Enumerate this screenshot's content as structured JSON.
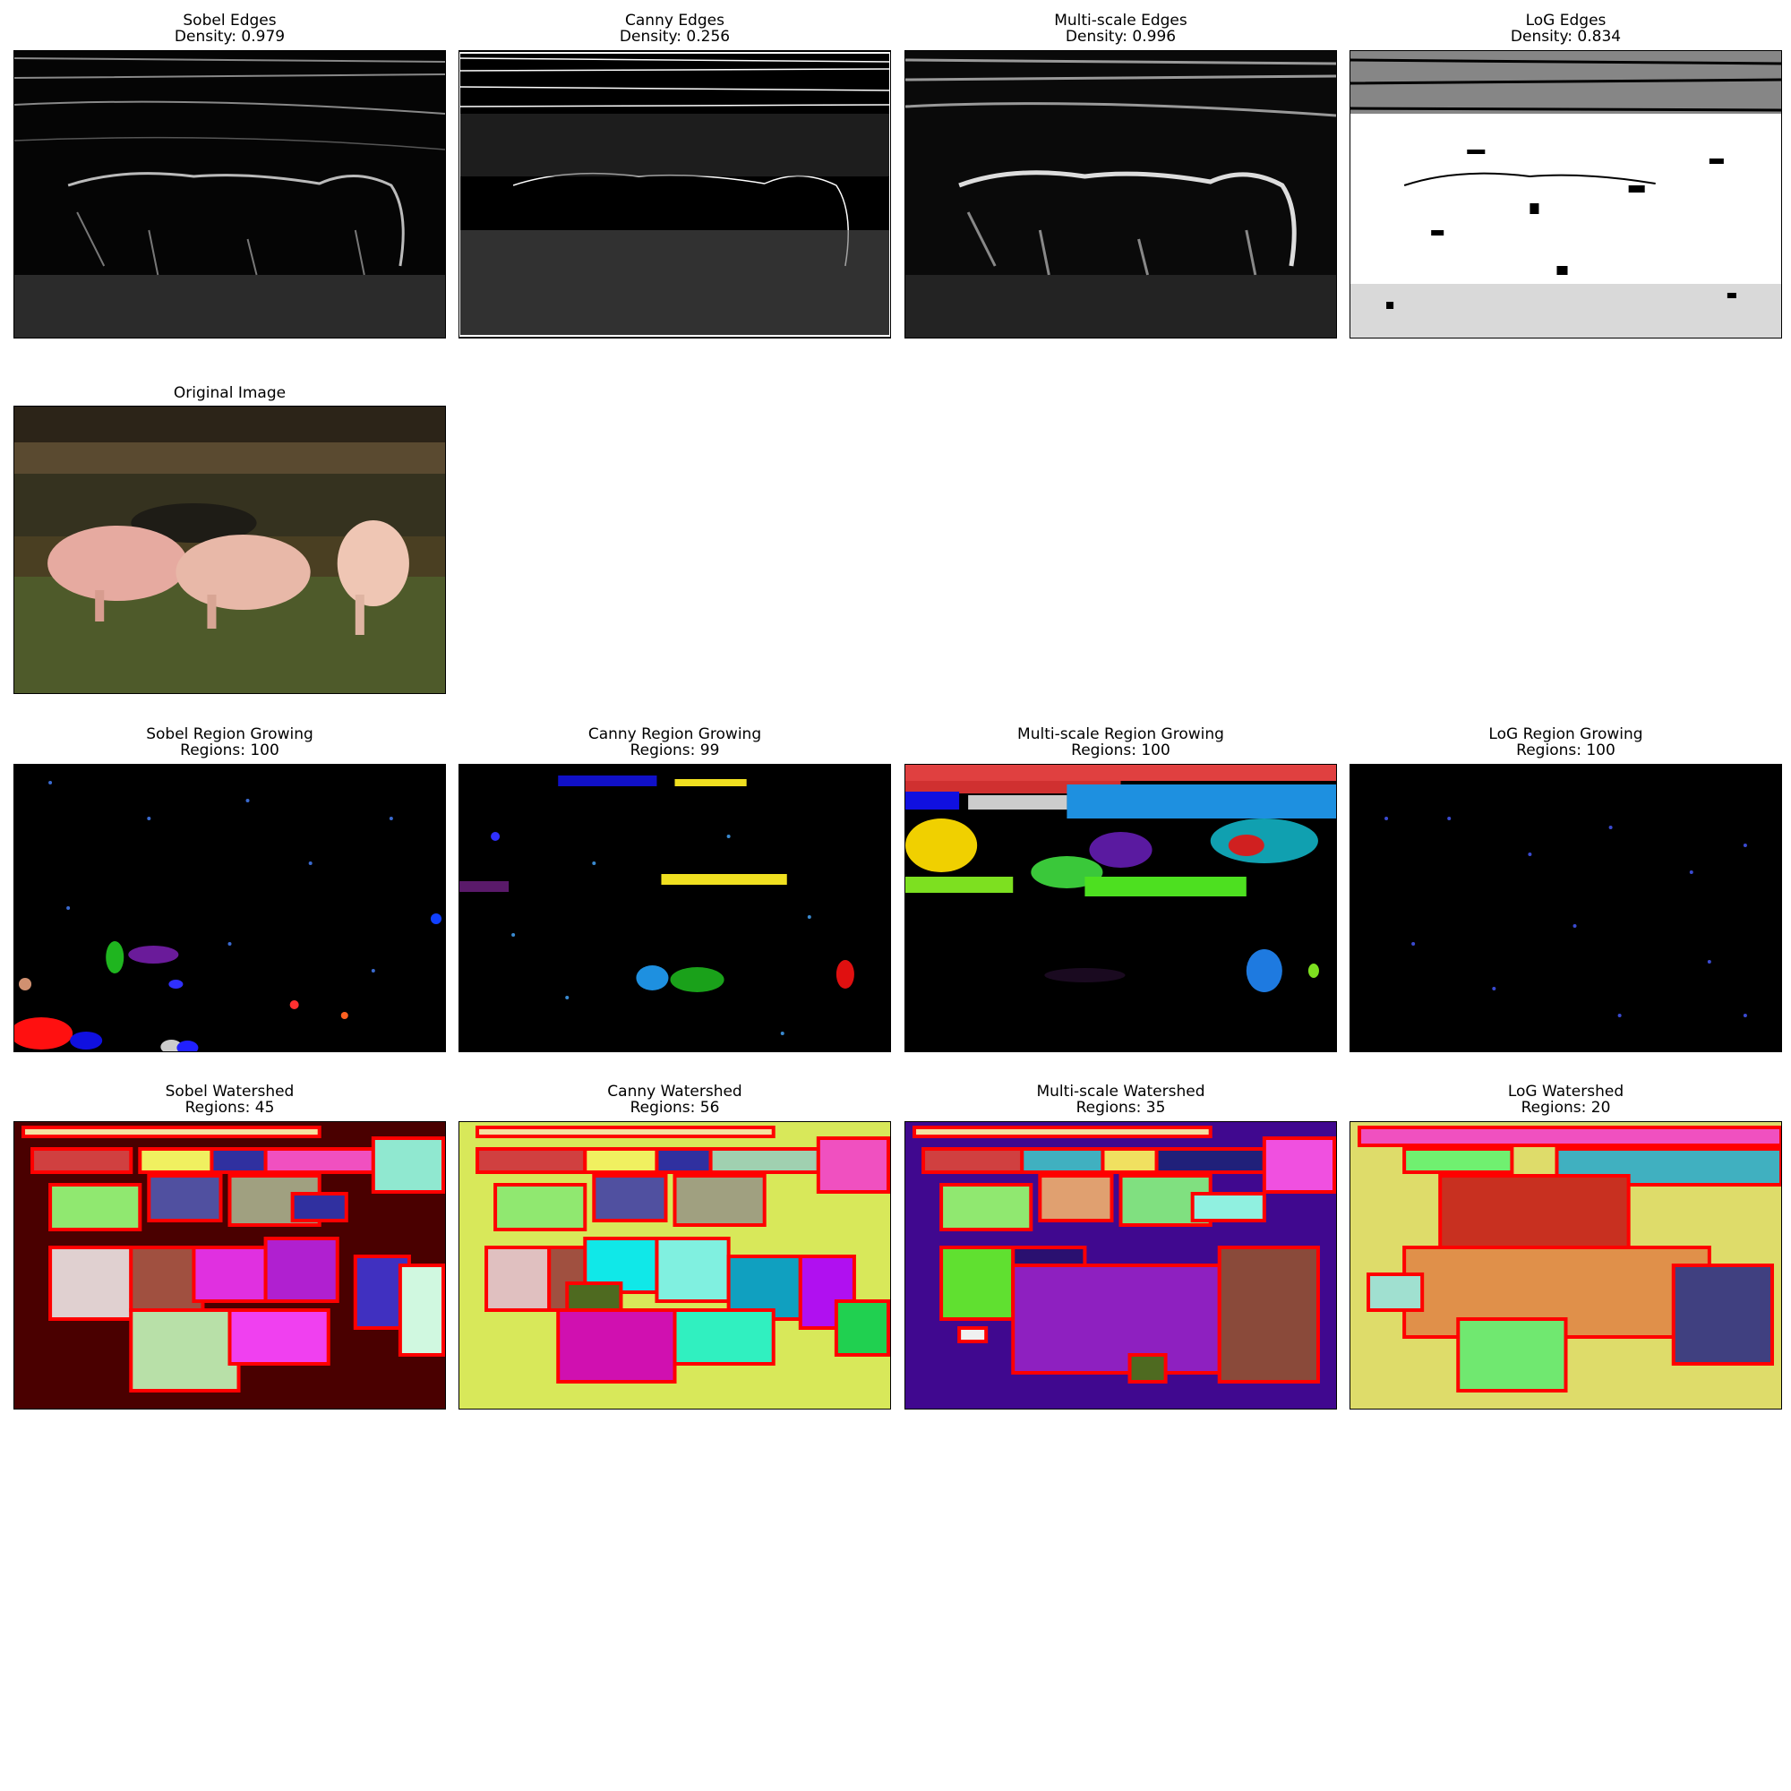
{
  "row_edges": [
    {
      "title": "Sobel Edges",
      "sub": "Density: 0.979"
    },
    {
      "title": "Canny Edges",
      "sub": "Density: 0.256"
    },
    {
      "title": "Multi-scale Edges",
      "sub": "Density: 0.996"
    },
    {
      "title": "LoG Edges",
      "sub": "Density: 0.834"
    }
  ],
  "original": {
    "title": "Original Image"
  },
  "row_region": [
    {
      "title": "Sobel Region Growing",
      "sub": "Regions: 100"
    },
    {
      "title": "Canny Region Growing",
      "sub": "Regions: 99"
    },
    {
      "title": "Multi-scale Region Growing",
      "sub": "Regions: 100"
    },
    {
      "title": "LoG Region Growing",
      "sub": "Regions: 100"
    }
  ],
  "row_watershed": [
    {
      "title": "Sobel Watershed",
      "sub": "Regions: 45"
    },
    {
      "title": "Canny Watershed",
      "sub": "Regions: 56"
    },
    {
      "title": "Multi-scale Watershed",
      "sub": "Regions: 35"
    },
    {
      "title": "LoG Watershed",
      "sub": "Regions: 20"
    }
  ],
  "colors": {
    "watershed_boundary": "#ff0000",
    "sobel_ws_bg": "#4a0000",
    "canny_ws_bg": "#d8e85a",
    "multiscale_ws_bg": "#40088f",
    "log_ws_bg": "#dedc6a"
  }
}
